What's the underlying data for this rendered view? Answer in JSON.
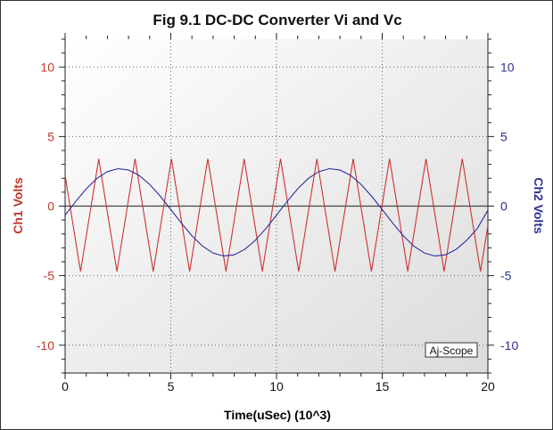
{
  "chart_data": {
    "type": "line",
    "title": "Fig 9.1 DC-DC Converter Vi and Vc",
    "xlabel": "Time(uSec) (10^3)",
    "ylabel_left": "Ch1 Volts",
    "ylabel_right": "Ch2 Volts",
    "xlim": [
      0,
      20
    ],
    "ylim_left": [
      -12,
      12
    ],
    "ylim_right": [
      -12,
      12
    ],
    "x_ticks": [
      "0",
      "5",
      "10",
      "15",
      "20"
    ],
    "x_tick_values": [
      0,
      5,
      10,
      15,
      20
    ],
    "y_ticks_left": [
      "10",
      "5",
      "0",
      "-5",
      "-10"
    ],
    "y_ticks_right": [
      "10",
      "5",
      "0",
      "-5",
      "-10"
    ],
    "y_tick_values": [
      10,
      5,
      0,
      -5,
      -10
    ],
    "grid": true,
    "watermark": "Aj-Scope",
    "colors": {
      "ch1": "#cc3333",
      "ch2": "#2b2b9e",
      "left_axis": "#c0392b",
      "right_axis": "#2e3192"
    },
    "series": [
      {
        "name": "Ch1",
        "axis": "left",
        "x": [
          0,
          0.73,
          1.59,
          2.45,
          3.31,
          4.17,
          5.03,
          5.89,
          6.75,
          7.61,
          8.47,
          9.33,
          10.19,
          11.05,
          11.91,
          12.77,
          13.63,
          14.49,
          15.35,
          16.21,
          17.07,
          17.93,
          18.79,
          19.65,
          20
        ],
        "y": [
          2.2,
          -4.7,
          3.4,
          -4.7,
          3.4,
          -4.7,
          3.4,
          -4.7,
          3.4,
          -4.7,
          3.4,
          -4.7,
          3.4,
          -4.7,
          3.4,
          -4.7,
          3.4,
          -4.7,
          3.4,
          -4.7,
          3.4,
          -4.7,
          3.4,
          -4.7,
          -1.4
        ]
      },
      {
        "name": "Ch2",
        "axis": "right",
        "x": [
          0,
          0.5,
          1,
          1.5,
          2,
          2.5,
          3,
          3.5,
          4,
          4.5,
          5,
          5.5,
          6,
          6.5,
          7,
          7.5,
          8,
          8.5,
          9,
          9.5,
          10,
          10.5,
          11,
          11.5,
          12,
          12.5,
          13,
          13.5,
          14,
          14.5,
          15,
          15.5,
          16,
          16.5,
          17,
          17.5,
          18,
          18.5,
          19,
          19.5,
          20
        ],
        "y": [
          -0.65,
          0.33,
          1.24,
          1.98,
          2.48,
          2.69,
          2.6,
          2.21,
          1.56,
          0.71,
          -0.25,
          -1.23,
          -2.14,
          -2.88,
          -3.38,
          -3.59,
          -3.5,
          -3.11,
          -2.46,
          -1.61,
          -0.65,
          0.33,
          1.24,
          1.98,
          2.48,
          2.69,
          2.6,
          2.21,
          1.56,
          0.71,
          -0.25,
          -1.23,
          -2.14,
          -2.88,
          -3.38,
          -3.59,
          -3.5,
          -3.11,
          -2.46,
          -1.61,
          -0.3
        ]
      }
    ]
  }
}
